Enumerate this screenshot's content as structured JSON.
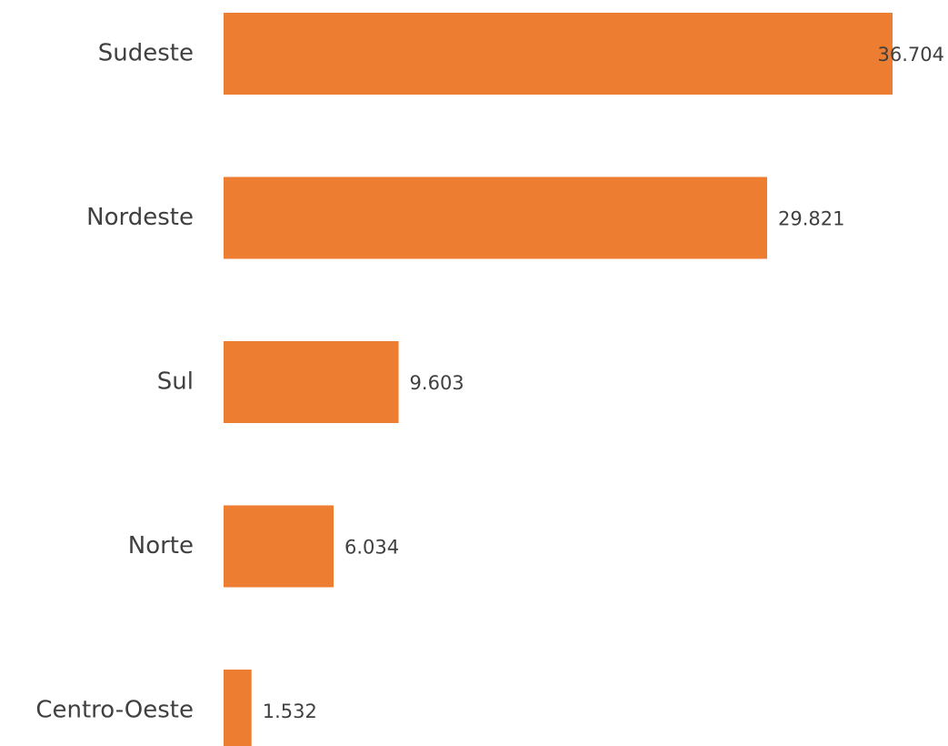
{
  "chart_data": {
    "type": "bar",
    "orientation": "horizontal",
    "categories": [
      "Sudeste",
      "Nordeste",
      "Sul",
      "Norte",
      "Centro-Oeste"
    ],
    "values": [
      36704,
      29821,
      9603,
      6034,
      1532
    ],
    "value_labels": [
      "36.704",
      "29.821",
      "9.603",
      "6.034",
      "1.532"
    ],
    "color": "#ed7d31"
  }
}
